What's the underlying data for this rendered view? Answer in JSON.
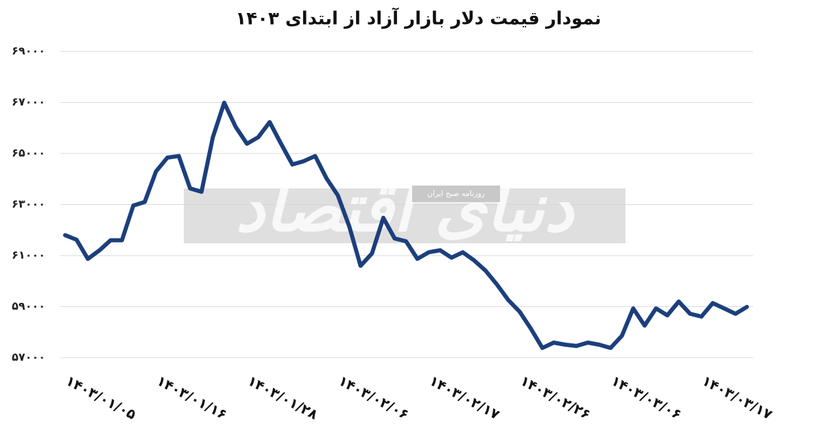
{
  "chart_data": {
    "type": "line",
    "title": "نمودار قیمت دلار بازار آزاد از ابتدای ۱۴۰۳",
    "watermark": "دنیای اقتصاد",
    "watermark_subtitle": "روزنامه صبح ایران",
    "categories": [
      "۱۴۰۳/۰۱/۰۵",
      null,
      null,
      null,
      null,
      null,
      null,
      null,
      "۱۴۰۳/۰۱/۱۶",
      null,
      null,
      null,
      null,
      null,
      null,
      null,
      "۱۴۰۳/۰۱/۲۸",
      null,
      null,
      null,
      null,
      null,
      null,
      null,
      "۱۴۰۳/۰۲/۰۶",
      null,
      null,
      null,
      null,
      null,
      null,
      null,
      "۱۴۰۳/۰۲/۱۷",
      null,
      null,
      null,
      null,
      null,
      null,
      null,
      "۱۴۰۳/۰۲/۲۶",
      null,
      null,
      null,
      null,
      null,
      null,
      null,
      "۱۴۰۳/۰۳/۰۶",
      null,
      null,
      null,
      null,
      null,
      null,
      null,
      "۱۴۰۳/۰۳/۱۷",
      null,
      null,
      null,
      null
    ],
    "series": [
      {
        "color": "#1c3f7c",
        "values": [
          61800,
          61620,
          60870,
          61200,
          61600,
          61600,
          62960,
          63100,
          64300,
          64840,
          64900,
          63630,
          63500,
          65640,
          66990,
          66050,
          65380,
          65640,
          66230,
          65380,
          64570,
          64700,
          64900,
          64030,
          63360,
          62150,
          60600,
          61080,
          62480,
          61670,
          61560,
          60870,
          61130,
          61210,
          60920,
          61130,
          60810,
          60410,
          59870,
          59260,
          58800,
          58130,
          57380,
          57590,
          57510,
          57460,
          57590,
          57510,
          57380,
          57860,
          58930,
          58260,
          58930,
          58660,
          59200,
          58720,
          58610,
          59140,
          58930,
          58720,
          58990
        ]
      }
    ],
    "ylim": [
      57000,
      69000
    ],
    "yticks": [
      {
        "value": 57000,
        "label": "۵۷۰۰۰"
      },
      {
        "value": 59000,
        "label": "۵۹۰۰۰"
      },
      {
        "value": 61000,
        "label": "۶۱۰۰۰"
      },
      {
        "value": 63000,
        "label": "۶۳۰۰۰"
      },
      {
        "value": 65000,
        "label": "۶۵۰۰۰"
      },
      {
        "value": 67000,
        "label": "۶۷۰۰۰"
      },
      {
        "value": 69000,
        "label": "۶۹۰۰۰"
      }
    ],
    "grid": true
  }
}
